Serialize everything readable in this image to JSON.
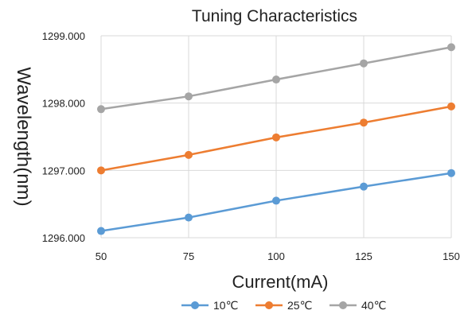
{
  "chart_data": {
    "type": "line",
    "title": "Tuning Characteristics",
    "xlabel": "Current(mA)",
    "ylabel": "Wavelength(nm)",
    "x": [
      50,
      75,
      100,
      125,
      150
    ],
    "x_tick_labels": [
      "50",
      "75",
      "100",
      "125",
      "150"
    ],
    "ylim": [
      1296.0,
      1299.0
    ],
    "y_ticks": [
      1296.0,
      1297.0,
      1298.0,
      1299.0
    ],
    "y_tick_labels": [
      "1296.000",
      "1297.000",
      "1298.000",
      "1299.000"
    ],
    "grid": true,
    "legend_position": "bottom",
    "series": [
      {
        "name": "10℃",
        "color": "#5b9bd5",
        "values": [
          1296.1,
          1296.3,
          1296.55,
          1296.76,
          1296.96
        ]
      },
      {
        "name": "25℃",
        "color": "#ed7d31",
        "values": [
          1297.0,
          1297.23,
          1297.49,
          1297.71,
          1297.95
        ]
      },
      {
        "name": "40℃",
        "color": "#a5a5a5",
        "values": [
          1297.91,
          1298.1,
          1298.35,
          1298.59,
          1298.83
        ]
      }
    ]
  }
}
